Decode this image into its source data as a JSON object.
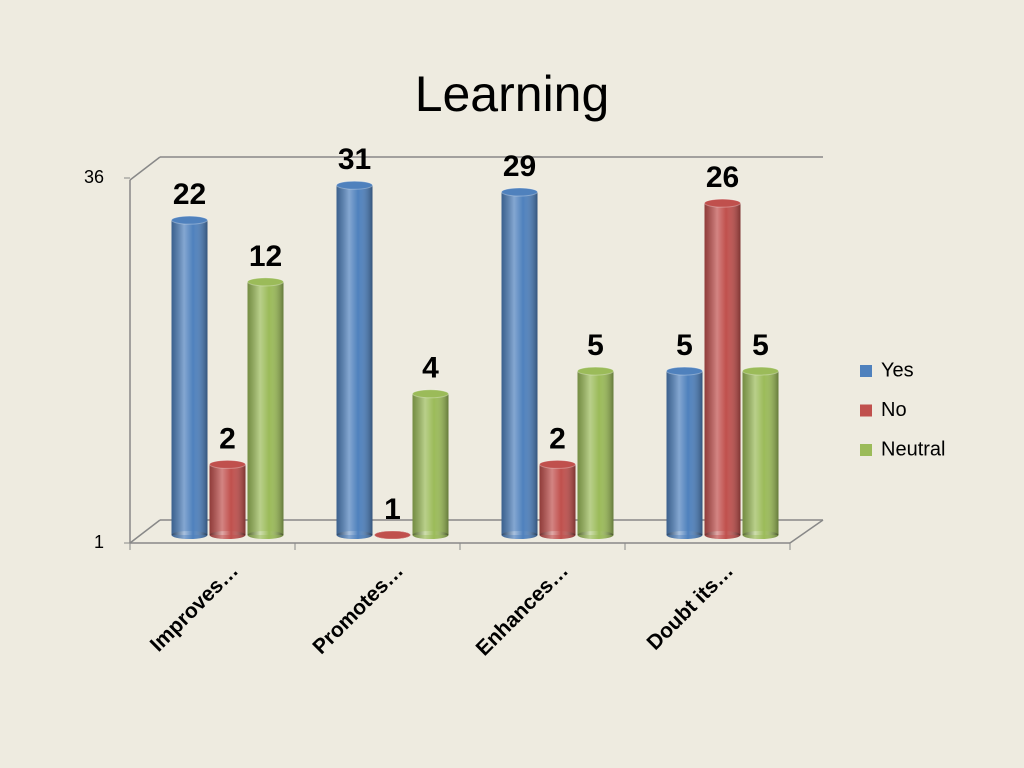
{
  "chart_data": {
    "type": "bar3d",
    "title": "Learning",
    "categories": [
      "Improves…",
      "Promotes…",
      "Enhances…",
      "Doubt its…"
    ],
    "series": [
      {
        "name": "Yes",
        "color": "#4f81bd",
        "values": [
          22,
          31,
          29,
          5
        ]
      },
      {
        "name": "No",
        "color": "#c0504d",
        "values": [
          2,
          1,
          2,
          26
        ]
      },
      {
        "name": "Neutral",
        "color": "#9bbb59",
        "values": [
          12,
          4,
          5,
          5
        ]
      }
    ],
    "ylim": [
      1,
      36
    ],
    "yticks": [
      1,
      36
    ],
    "log_scale": true,
    "legend": "right"
  }
}
